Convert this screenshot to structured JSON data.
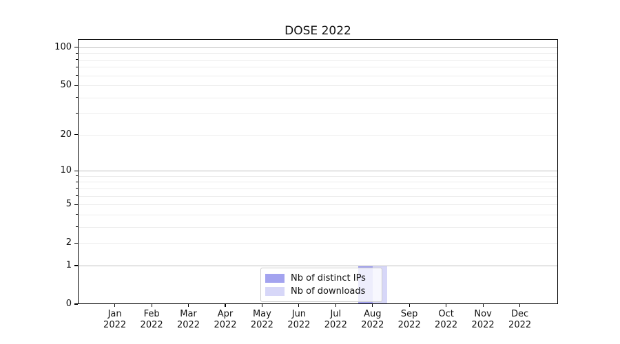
{
  "chart_data": {
    "type": "bar",
    "title": "DOSE 2022",
    "categories": [
      {
        "month": "Jan",
        "year": "2022"
      },
      {
        "month": "Feb",
        "year": "2022"
      },
      {
        "month": "Mar",
        "year": "2022"
      },
      {
        "month": "Apr",
        "year": "2022"
      },
      {
        "month": "May",
        "year": "2022"
      },
      {
        "month": "Jun",
        "year": "2022"
      },
      {
        "month": "Jul",
        "year": "2022"
      },
      {
        "month": "Aug",
        "year": "2022"
      },
      {
        "month": "Sep",
        "year": "2022"
      },
      {
        "month": "Oct",
        "year": "2022"
      },
      {
        "month": "Nov",
        "year": "2022"
      },
      {
        "month": "Dec",
        "year": "2022"
      }
    ],
    "series": [
      {
        "name": "Nb of distinct IPs",
        "color": "#a3a3ef",
        "values": [
          0,
          0,
          0,
          0,
          0,
          0,
          0,
          1,
          0,
          0,
          0,
          0
        ]
      },
      {
        "name": "Nb of downloads",
        "color": "#d7d7f8",
        "values": [
          0,
          0,
          0,
          0,
          0,
          0,
          0,
          1,
          0,
          0,
          0,
          0
        ]
      }
    ],
    "xlabel": "",
    "ylabel": "",
    "yscale": "log1p",
    "ylim": [
      0,
      116
    ],
    "ytick_values": [
      100,
      50,
      20,
      10,
      5,
      2,
      1,
      0
    ],
    "major_gridlines": [
      1,
      10,
      100
    ],
    "minor_gridlines": [
      2,
      3,
      4,
      5,
      6,
      7,
      8,
      9,
      20,
      30,
      40,
      50,
      60,
      70,
      80,
      90
    ],
    "grid": "horizontal",
    "legend_position": "lower center inside"
  },
  "colors": {
    "spine": "#000000",
    "major_grid": "#bdbdbd",
    "minor_grid": "#ececec",
    "text": "#111111"
  }
}
